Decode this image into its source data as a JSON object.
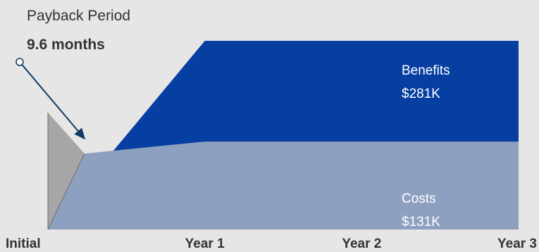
{
  "callout": {
    "title": "Payback Period",
    "value": "9.6 months",
    "payback_months": 9.6
  },
  "labels": {
    "benefits_name": "Benefits",
    "benefits_value": "$281K",
    "costs_name": "Costs",
    "costs_value": "$131K"
  },
  "colors": {
    "background": "#e6e6e6",
    "benefits": "#073ea1",
    "costs": "#8ea0bf",
    "initial_cost": "#a6a6a6",
    "arrow": "#0e3b63",
    "tick_text": "#333333"
  },
  "chart_data": {
    "type": "area",
    "x": [
      "Initial",
      "Year 1",
      "Year 2",
      "Year 3"
    ],
    "xlim": [
      0,
      36
    ],
    "ylim": [
      0,
      281
    ],
    "series": [
      {
        "name": "Benefits",
        "label": "$281K",
        "points": [
          [
            0,
            0
          ],
          [
            12,
            281
          ],
          [
            36,
            281
          ]
        ]
      },
      {
        "name": "Costs",
        "label": "$131K",
        "points": [
          [
            0,
            131
          ],
          [
            12,
            131
          ],
          [
            36,
            131
          ]
        ]
      }
    ],
    "initial_cost_points": [
      [
        0,
        174
      ],
      [
        0,
        0
      ],
      [
        2.8,
        113
      ]
    ],
    "annotation": {
      "text": "Payback Period",
      "value": "9.6 months"
    },
    "grid": false,
    "legend": "none"
  }
}
